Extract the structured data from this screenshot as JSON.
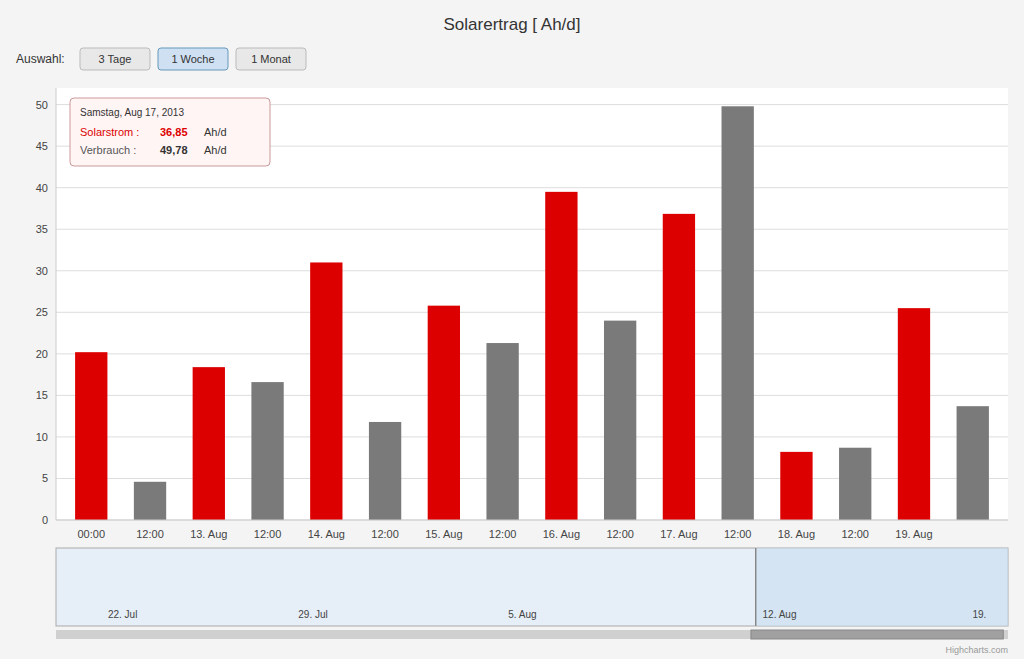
{
  "chart_data": {
    "type": "bar",
    "title": "Solarertrag [ Ah/d]",
    "categories": [
      "00:00",
      "12:00",
      "13. Aug",
      "12:00",
      "14. Aug",
      "12:00",
      "15. Aug",
      "12:00",
      "16. Aug",
      "12:00",
      "17. Aug",
      "12:00",
      "18. Aug",
      "12:00",
      "19. Aug",
      null
    ],
    "series": [
      {
        "color": "#dd0000",
        "values": [
          20.2,
          0,
          18.4,
          0,
          31.0,
          0,
          25.8,
          0,
          39.5,
          0,
          36.85,
          0,
          8.2,
          0,
          25.5,
          0
        ]
      },
      {
        "color": "#7a7a7a",
        "values": [
          0,
          4.6,
          0,
          16.6,
          0,
          11.8,
          0,
          21.3,
          0,
          24.0,
          0,
          49.8,
          0,
          8.7,
          0,
          13.7
        ]
      }
    ],
    "ylim": [
      0,
      52
    ],
    "yticks": [
      0,
      5,
      10,
      15,
      20,
      25,
      30,
      35,
      40,
      45,
      50
    ],
    "grid": true,
    "annotations": [
      "Samstag, Aug 17, 2013",
      "Solarstrom :",
      "36,85",
      "Ah/d",
      "Verbrauch :",
      "49,78",
      "Ah/d",
      "Auswahl:",
      "3 Tage",
      "1 Woche",
      "1 Monat",
      "22. Jul",
      "29. Jul",
      "5. Aug",
      "12. Aug",
      "19.",
      "Highcharts.com"
    ]
  }
}
